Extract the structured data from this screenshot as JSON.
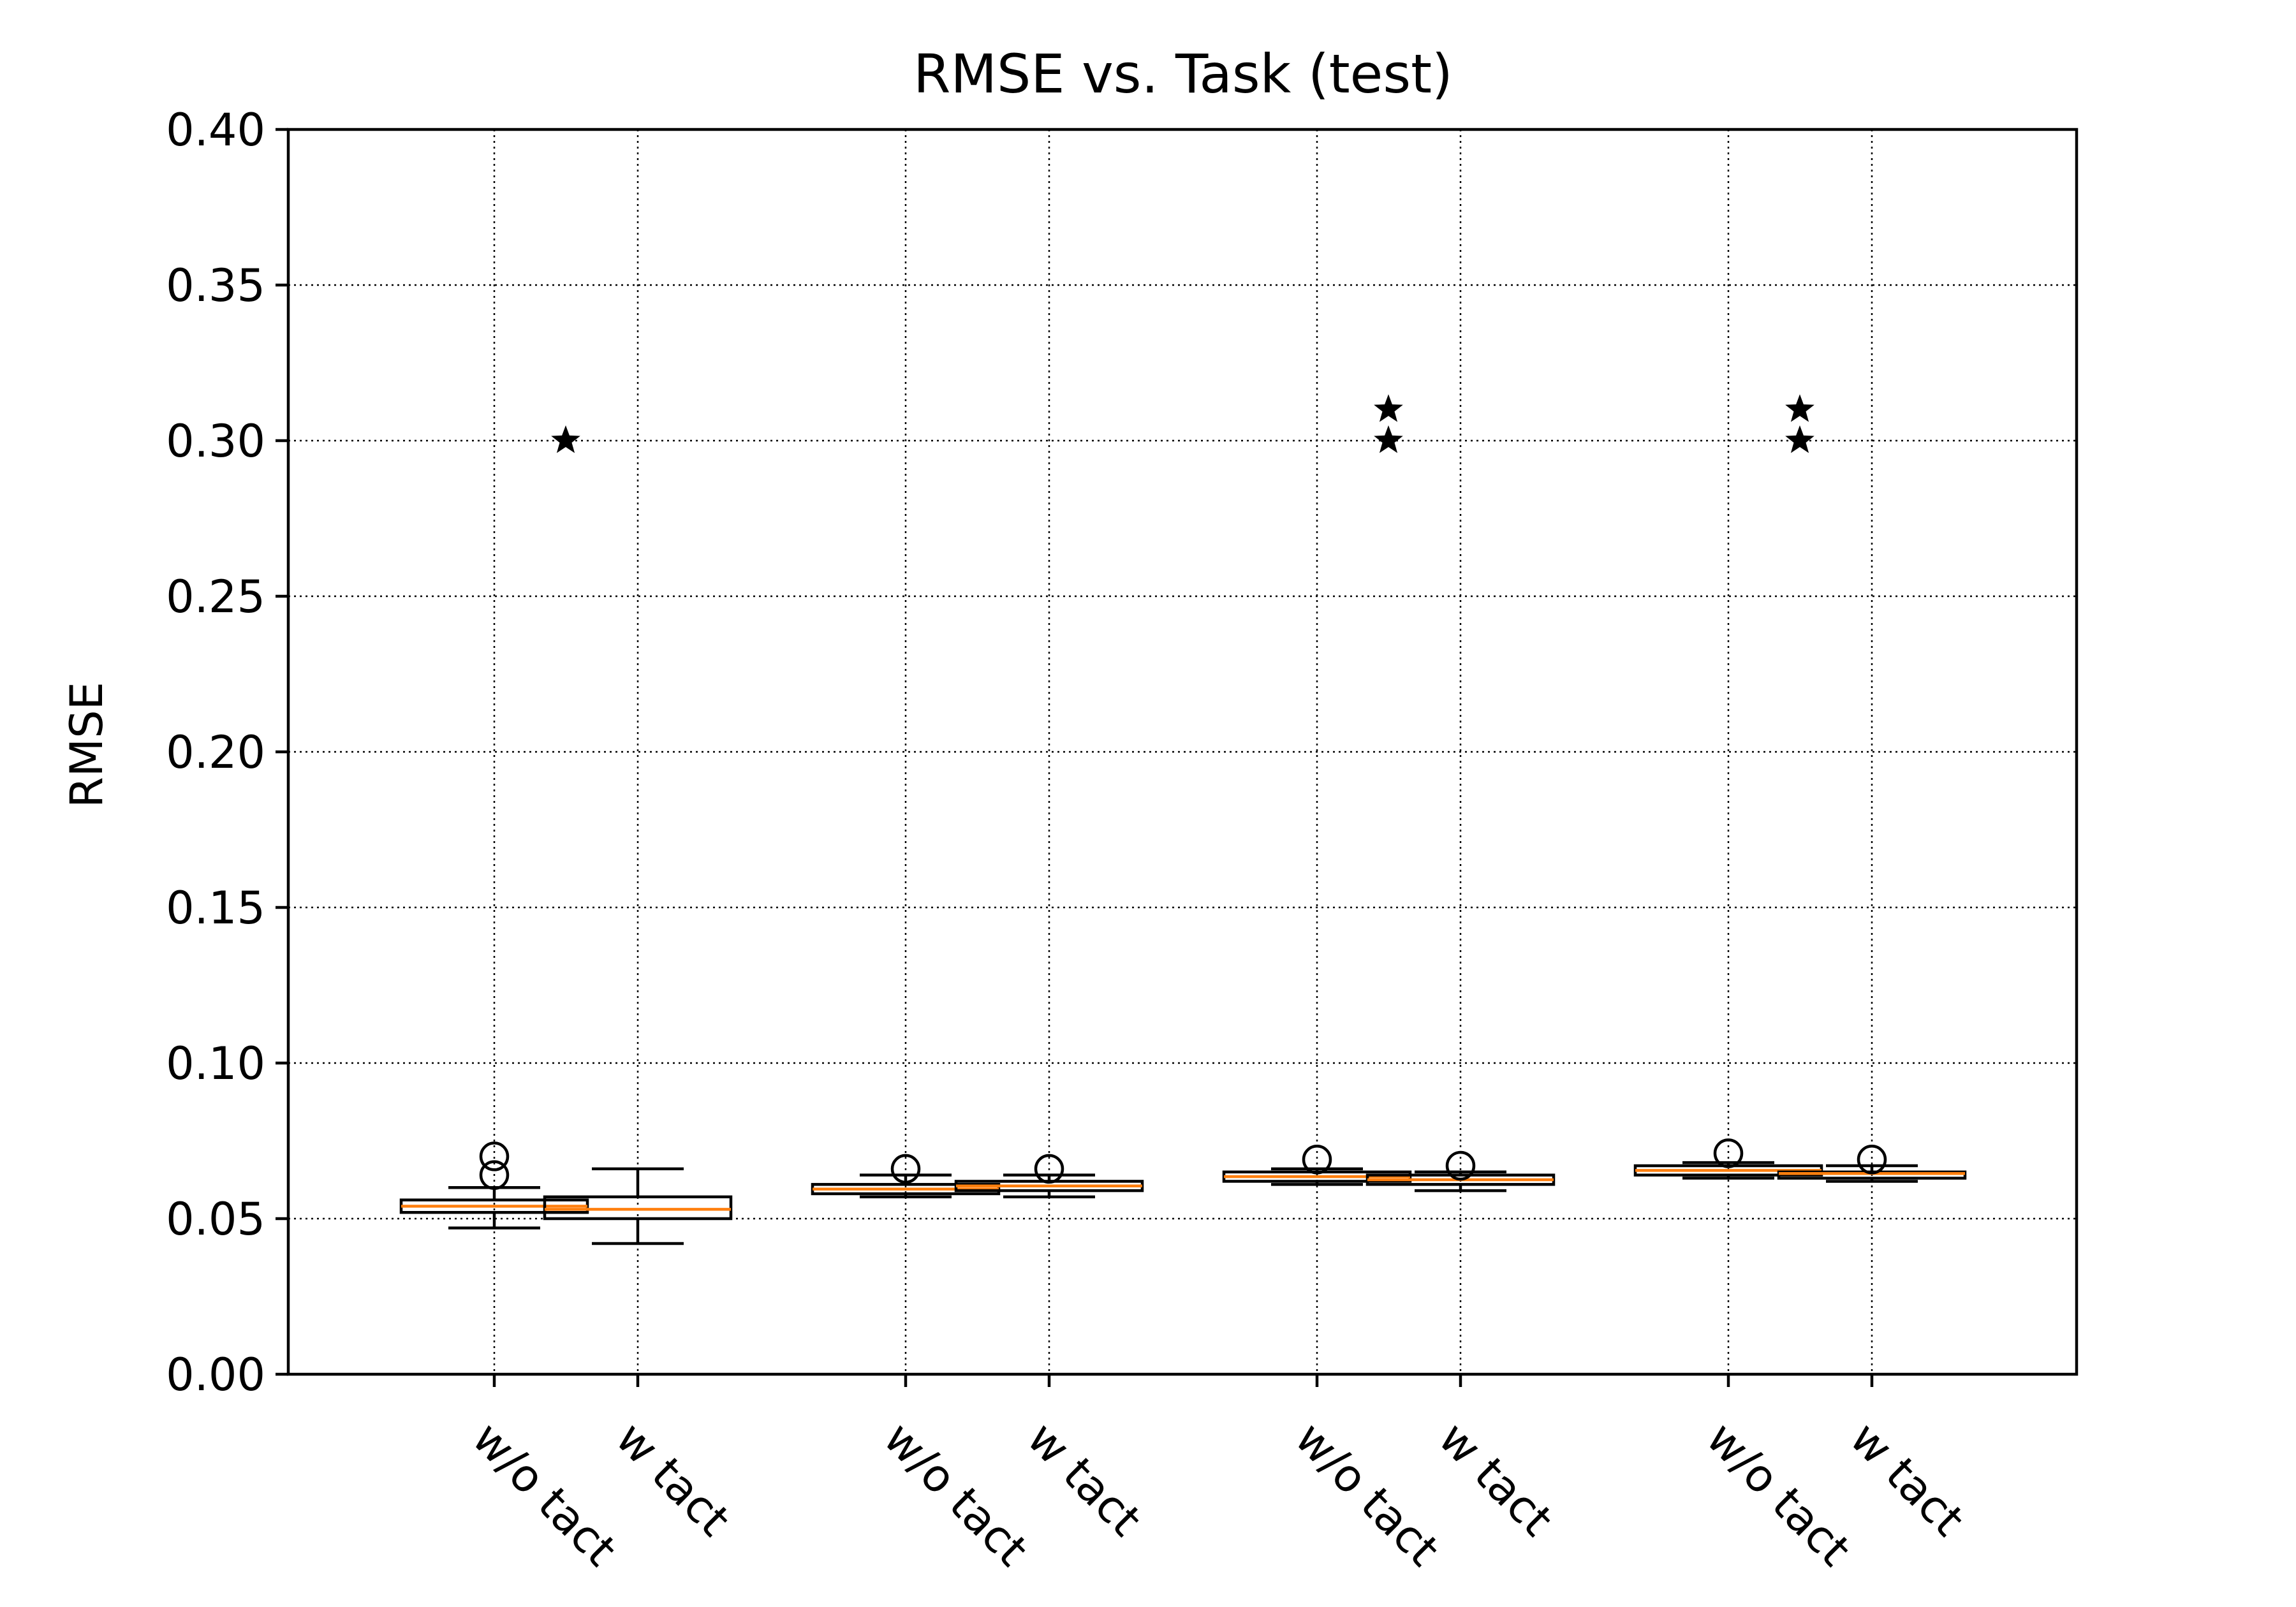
{
  "chart_data": {
    "type": "box",
    "title": "RMSE vs. Task (test)",
    "xlabel": "",
    "ylabel": "RMSE",
    "ylim": [
      0.0,
      0.4
    ],
    "yticks": [
      "0.00",
      "0.05",
      "0.10",
      "0.15",
      "0.20",
      "0.25",
      "0.30",
      "0.35",
      "0.40"
    ],
    "ytick_values": [
      0.0,
      0.05,
      0.1,
      0.15,
      0.2,
      0.25,
      0.3,
      0.35,
      0.4
    ],
    "grid": true,
    "groups": [
      {
        "boxes": [
          {
            "label": "w/o tact",
            "whislo": 0.047,
            "q1": 0.052,
            "med": 0.054,
            "q3": 0.056,
            "whishi": 0.06,
            "fliers": [
              0.064,
              0.07
            ]
          },
          {
            "label": "w tact",
            "whislo": 0.042,
            "q1": 0.05,
            "med": 0.053,
            "q3": 0.057,
            "whishi": 0.066,
            "fliers": []
          }
        ],
        "stars": [
          0.3
        ]
      },
      {
        "boxes": [
          {
            "label": "w/o tact",
            "whislo": 0.057,
            "q1": 0.058,
            "med": 0.0595,
            "q3": 0.061,
            "whishi": 0.064,
            "fliers": [
              0.066
            ]
          },
          {
            "label": "w tact",
            "whislo": 0.057,
            "q1": 0.059,
            "med": 0.0605,
            "q3": 0.062,
            "whishi": 0.064,
            "fliers": [
              0.066
            ]
          }
        ],
        "stars": []
      },
      {
        "boxes": [
          {
            "label": "w/o tact",
            "whislo": 0.061,
            "q1": 0.062,
            "med": 0.0635,
            "q3": 0.065,
            "whishi": 0.066,
            "fliers": [
              0.069
            ]
          },
          {
            "label": "w tact",
            "whislo": 0.059,
            "q1": 0.061,
            "med": 0.0625,
            "q3": 0.064,
            "whishi": 0.065,
            "fliers": [
              0.067
            ]
          }
        ],
        "stars": [
          0.3,
          0.31
        ]
      },
      {
        "boxes": [
          {
            "label": "w/o tact",
            "whislo": 0.063,
            "q1": 0.064,
            "med": 0.0655,
            "q3": 0.067,
            "whishi": 0.068,
            "fliers": [
              0.071
            ]
          },
          {
            "label": "w tact",
            "whislo": 0.062,
            "q1": 0.063,
            "med": 0.0645,
            "q3": 0.065,
            "whishi": 0.067,
            "fliers": [
              0.069
            ]
          }
        ],
        "stars": [
          0.3,
          0.31
        ]
      }
    ],
    "colors": {
      "median": "#ff7f0e",
      "box": "#000000",
      "background": "#ffffff"
    }
  }
}
